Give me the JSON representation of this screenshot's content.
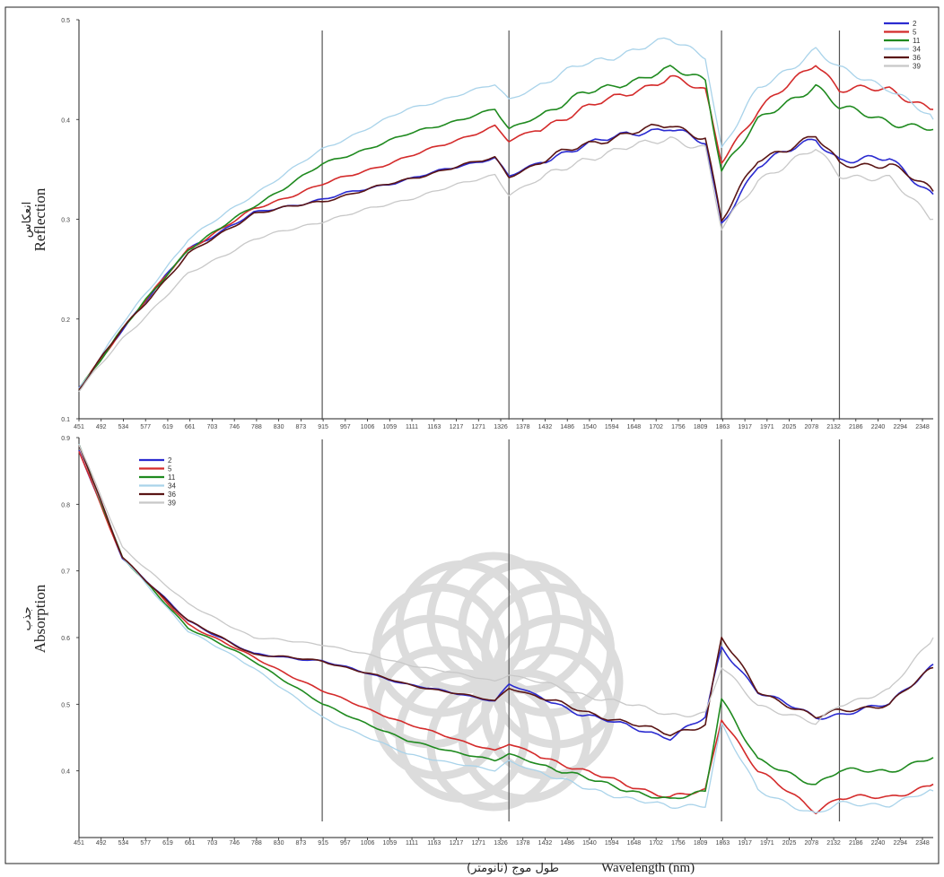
{
  "chart_data": {
    "type": "line",
    "x_tick_labels": [
      "451",
      "492",
      "534",
      "577",
      "619",
      "661",
      "703",
      "746",
      "788",
      "830",
      "873",
      "915",
      "957",
      "1006",
      "1059",
      "1111",
      "1163",
      "1217",
      "1271",
      "1326",
      "1378",
      "1432",
      "1486",
      "1540",
      "1594",
      "1648",
      "1702",
      "1756",
      "1809",
      "1863",
      "1917",
      "1971",
      "2025",
      "2078",
      "2132",
      "2186",
      "2240",
      "2294",
      "2348"
    ],
    "x_tick_labels_bottom": [
      "451",
      "492",
      "534",
      "577",
      "619",
      "661",
      "703",
      "746",
      "788",
      "830",
      "873",
      "915",
      "957",
      "1006",
      "1059",
      "1111",
      "1163",
      "1217",
      "1271",
      "1326",
      "1378",
      "1432",
      "1486",
      "1540",
      "1594",
      "1648",
      "1702",
      "1756",
      "1809",
      "1863",
      "1917",
      "1971",
      "2025",
      "2078",
      "2132",
      "2186",
      "2240",
      "2294",
      "2348"
    ],
    "xlim": [
      451,
      2400
    ],
    "vertical_lines": [
      1006,
      1432,
      1917,
      2186
    ],
    "xlabel": "Wavelength  (nm)",
    "xlabel_fa": "طول موج (نانومتر)",
    "legend": [
      "2",
      "5",
      "11",
      "34",
      "36",
      "39"
    ],
    "colors": {
      "2": "#2b2bd0",
      "5": "#d42b2b",
      "11": "#1f8a1f",
      "34": "#a9d3ea",
      "36": "#5a1515",
      "39": "#c8c8c8"
    },
    "panels": [
      {
        "name": "reflection",
        "ylabel": "Reflection",
        "ylabel_fa": "انعکاس",
        "ylim": [
          0.1,
          0.5
        ],
        "y_tick_labels": [
          "0.5",
          "0.4",
          "0.3",
          "0.2",
          "0.1"
        ],
        "y_ticks": [
          0.5,
          0.4,
          0.3,
          0.2,
          0.1
        ],
        "legend_position": "top-right",
        "x": [
          451,
          550,
          700,
          850,
          1006,
          1200,
          1400,
          1432,
          1600,
          1800,
          1880,
          1917,
          2000,
          2132,
          2186,
          2300,
          2400
        ],
        "series": [
          {
            "name": "2",
            "values": [
              0.13,
              0.19,
              0.27,
              0.306,
              0.32,
              0.34,
              0.362,
              0.343,
              0.375,
              0.393,
              0.375,
              0.295,
              0.355,
              0.38,
              0.36,
              0.36,
              0.325
            ]
          },
          {
            "name": "5",
            "values": [
              0.13,
              0.19,
              0.27,
              0.31,
              0.335,
              0.362,
              0.393,
              0.378,
              0.41,
              0.442,
              0.428,
              0.36,
              0.408,
              0.458,
              0.43,
              0.43,
              0.41
            ]
          },
          {
            "name": "11",
            "values": [
              0.13,
              0.19,
              0.27,
              0.313,
              0.355,
              0.385,
              0.41,
              0.39,
              0.425,
              0.45,
              0.44,
              0.35,
              0.398,
              0.435,
              0.412,
              0.398,
              0.39
            ]
          },
          {
            "name": "34",
            "values": [
              0.13,
              0.195,
              0.28,
              0.325,
              0.37,
              0.41,
              0.435,
              0.42,
              0.455,
              0.48,
              0.465,
              0.37,
              0.43,
              0.47,
              0.45,
              0.432,
              0.4
            ]
          },
          {
            "name": "36",
            "values": [
              0.13,
              0.19,
              0.265,
              0.306,
              0.318,
              0.34,
              0.362,
              0.343,
              0.375,
              0.395,
              0.382,
              0.298,
              0.36,
              0.383,
              0.355,
              0.355,
              0.328
            ]
          },
          {
            "name": "39",
            "values": [
              0.128,
              0.18,
              0.245,
              0.28,
              0.298,
              0.32,
              0.345,
              0.325,
              0.36,
              0.382,
              0.37,
              0.29,
              0.34,
              0.37,
              0.345,
              0.34,
              0.3
            ]
          }
        ]
      },
      {
        "name": "absorption",
        "ylabel": "Absorption",
        "ylabel_fa": "جذب",
        "ylim": [
          0.3,
          0.9
        ],
        "y_tick_labels": [
          "0.9",
          "0.8",
          "0.7",
          "0.6",
          "0.5",
          "0.4"
        ],
        "y_ticks": [
          0.9,
          0.8,
          0.7,
          0.6,
          0.5,
          0.4
        ],
        "legend_position": "top-left",
        "x": [
          451,
          550,
          700,
          850,
          1006,
          1200,
          1400,
          1432,
          1600,
          1800,
          1880,
          1917,
          2000,
          2132,
          2186,
          2300,
          2400
        ],
        "series": [
          {
            "name": "2",
            "values": [
              0.88,
              0.72,
              0.625,
              0.575,
              0.565,
              0.53,
              0.505,
              0.53,
              0.485,
              0.45,
              0.48,
              0.585,
              0.52,
              0.48,
              0.485,
              0.5,
              0.56
            ]
          },
          {
            "name": "5",
            "values": [
              0.88,
              0.72,
              0.62,
              0.57,
              0.52,
              0.47,
              0.43,
              0.44,
              0.4,
              0.36,
              0.37,
              0.48,
              0.4,
              0.34,
              0.36,
              0.36,
              0.38
            ]
          },
          {
            "name": "11",
            "values": [
              0.89,
              0.72,
              0.615,
              0.565,
              0.5,
              0.445,
              0.415,
              0.425,
              0.39,
              0.355,
              0.37,
              0.51,
              0.415,
              0.38,
              0.4,
              0.4,
              0.42
            ]
          },
          {
            "name": "34",
            "values": [
              0.89,
              0.72,
              0.61,
              0.555,
              0.48,
              0.425,
              0.4,
              0.415,
              0.375,
              0.345,
              0.35,
              0.47,
              0.37,
              0.335,
              0.35,
              0.35,
              0.37
            ]
          },
          {
            "name": "36",
            "values": [
              0.89,
              0.72,
              0.625,
              0.575,
              0.565,
              0.53,
              0.505,
              0.525,
              0.49,
              0.455,
              0.47,
              0.6,
              0.52,
              0.48,
              0.49,
              0.5,
              0.555
            ]
          },
          {
            "name": "39",
            "values": [
              0.89,
              0.735,
              0.65,
              0.6,
              0.59,
              0.56,
              0.535,
              0.545,
              0.515,
              0.485,
              0.485,
              0.555,
              0.5,
              0.47,
              0.5,
              0.52,
              0.6
            ]
          }
        ]
      }
    ]
  }
}
